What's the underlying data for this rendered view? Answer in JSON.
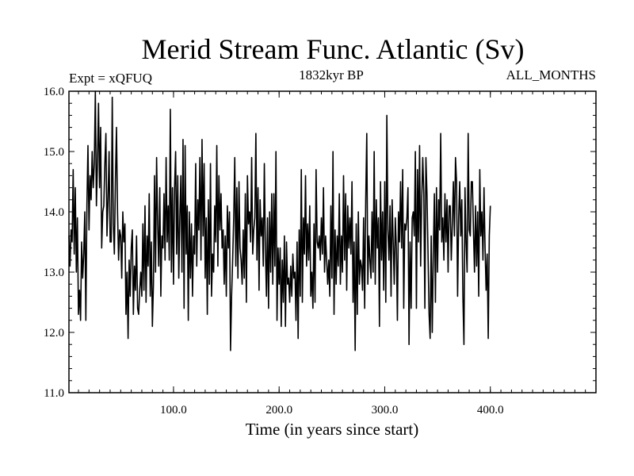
{
  "chart_data": {
    "type": "line",
    "title": "Merid Stream Func. Atlantic (Sv)",
    "left_note": "Expt = xQFUQ",
    "center_note": "1832kyr BP",
    "right_note": "ALL_MONTHS",
    "xlabel": "Time (in years since start)",
    "ylabel": "",
    "xlim": [
      1,
      500
    ],
    "ylim": [
      11.0,
      16.0
    ],
    "xticks": [
      100,
      200,
      300,
      400
    ],
    "xtick_labels": [
      "100.0",
      "200.0",
      "300.0",
      "400.0"
    ],
    "yticks": [
      11,
      12,
      13,
      14,
      15,
      16
    ],
    "ytick_labels": [
      "11.0",
      "12.0",
      "13.0",
      "14.0",
      "15.0",
      "16.0"
    ],
    "series": [
      {
        "name": "Merid Stream Func. Atlantic",
        "x_start": 1,
        "x_step": 1,
        "values": [
          13.6,
          13.1,
          13.7,
          13.5,
          14.7,
          13.3,
          14.4,
          13.0,
          13.9,
          12.3,
          12.7,
          12.2,
          13.5,
          12.9,
          13.3,
          14.0,
          12.2,
          14.1,
          15.1,
          13.7,
          14.6,
          14.2,
          15.0,
          14.4,
          14.8,
          16.0,
          14.1,
          14.8,
          15.8,
          14.4,
          15.4,
          13.4,
          14.0,
          14.1,
          14.8,
          15.3,
          13.6,
          14.2,
          15.0,
          13.5,
          13.5,
          15.9,
          13.8,
          13.3,
          14.5,
          15.4,
          14.0,
          13.2,
          13.7,
          13.6,
          12.9,
          14.0,
          13.5,
          13.8,
          12.3,
          13.0,
          11.9,
          13.2,
          12.6,
          13.4,
          13.7,
          12.3,
          13.1,
          12.7,
          13.6,
          12.4,
          12.3,
          12.7,
          13.0,
          12.6,
          13.8,
          12.7,
          14.1,
          12.5,
          13.6,
          13.1,
          14.3,
          12.6,
          13.5,
          12.1,
          12.8,
          14.6,
          13.0,
          14.9,
          13.8,
          13.1,
          14.4,
          12.6,
          13.6,
          13.4,
          14.3,
          13.2,
          14.9,
          13.5,
          14.1,
          13.2,
          15.7,
          13.0,
          14.4,
          12.8,
          14.4,
          15.0,
          13.3,
          14.6,
          12.9,
          13.9,
          14.6,
          13.0,
          15.2,
          12.4,
          15.1,
          13.3,
          14.1,
          12.2,
          14.0,
          12.9,
          13.8,
          12.6,
          13.6,
          13.3,
          14.8,
          13.1,
          14.2,
          13.7,
          14.9,
          13.2,
          15.2,
          13.6,
          14.8,
          12.9,
          13.9,
          12.3,
          14.2,
          12.8,
          14.8,
          12.6,
          13.3,
          13.0,
          14.1,
          13.5,
          15.1,
          13.1,
          14.6,
          13.7,
          14.3,
          13.4,
          13.7,
          12.8,
          13.6,
          12.6,
          14.1,
          13.4,
          14.0,
          11.7,
          12.6,
          13.2,
          13.9,
          14.9,
          13.1,
          14.4,
          12.9,
          14.5,
          13.4,
          13.2,
          12.8,
          13.7,
          12.9,
          14.3,
          12.5,
          14.6,
          13.8,
          14.0,
          13.5,
          14.9,
          13.3,
          13.7,
          13.9,
          15.3,
          13.2,
          14.4,
          12.7,
          14.2,
          13.6,
          13.9,
          13.1,
          14.8,
          13.4,
          12.6,
          13.9,
          12.4,
          14.0,
          13.0,
          14.3,
          12.8,
          14.3,
          13.1,
          15.0,
          12.2,
          13.4,
          12.8,
          13.4,
          12.1,
          13.2,
          12.5,
          13.6,
          12.1,
          13.5,
          12.8,
          12.9,
          12.5,
          13.1,
          12.6,
          13.3,
          12.9,
          13.0,
          12.2,
          13.5,
          11.9,
          13.7,
          12.6,
          14.7,
          12.5,
          13.9,
          13.3,
          14.6,
          13.1,
          13.8,
          13.2,
          14.1,
          12.6,
          13.0,
          12.4,
          13.8,
          12.5,
          14.7,
          13.5,
          13.4,
          13.6,
          13.2,
          13.9,
          13.3,
          14.4,
          13.0,
          13.6,
          13.2,
          12.8,
          13.2,
          12.6,
          14.1,
          12.9,
          15.0,
          12.3,
          13.7,
          12.8,
          13.6,
          13.1,
          14.3,
          12.8,
          13.6,
          13.0,
          14.6,
          13.2,
          14.3,
          12.7,
          14.1,
          13.4,
          13.9,
          13.3,
          14.5,
          12.5,
          13.5,
          11.7,
          13.8,
          12.3,
          14.0,
          12.8,
          13.2,
          13.1,
          12.7,
          13.9,
          12.4,
          14.2,
          15.3,
          12.8,
          13.6,
          13.2,
          12.9,
          14.0,
          13.0,
          15.0,
          12.8,
          14.2,
          13.4,
          13.9,
          12.1,
          14.5,
          13.2,
          14.0,
          12.7,
          14.5,
          12.5,
          15.6,
          13.7,
          13.2,
          14.1,
          12.6,
          14.2,
          13.5,
          12.8,
          13.9,
          13.4,
          12.2,
          14.0,
          13.5,
          14.5,
          13.4,
          14.7,
          12.4,
          13.8,
          13.7,
          13.9,
          14.4,
          11.8,
          13.5,
          12.4,
          13.9,
          14.0,
          13.6,
          15.0,
          12.4,
          14.7,
          13.5,
          15.1,
          13.1,
          14.2,
          14.9,
          14.3,
          12.4,
          14.9,
          14.3,
          13.3,
          12.3,
          11.9,
          13.6,
          12.0,
          13.3,
          14.3,
          12.5,
          14.4,
          13.0,
          14.2,
          13.7,
          15.3,
          13.5,
          13.9,
          13.2,
          14.3,
          13.5,
          14.2,
          13.0,
          14.1,
          14.1,
          13.2,
          13.8,
          14.5,
          13.6,
          14.9,
          14.5,
          12.6,
          13.9,
          14.5,
          13.6,
          14.2,
          12.6,
          11.8,
          14.4,
          13.5,
          13.0,
          15.3,
          13.7,
          13.6,
          14.5,
          14.5,
          13.7,
          13.0,
          14.1,
          13.1,
          14.0,
          12.6,
          14.7,
          13.6,
          14.0,
          13.2,
          14.4,
          13.4,
          12.7,
          13.3,
          11.9,
          13.6,
          14.1
        ]
      }
    ]
  }
}
